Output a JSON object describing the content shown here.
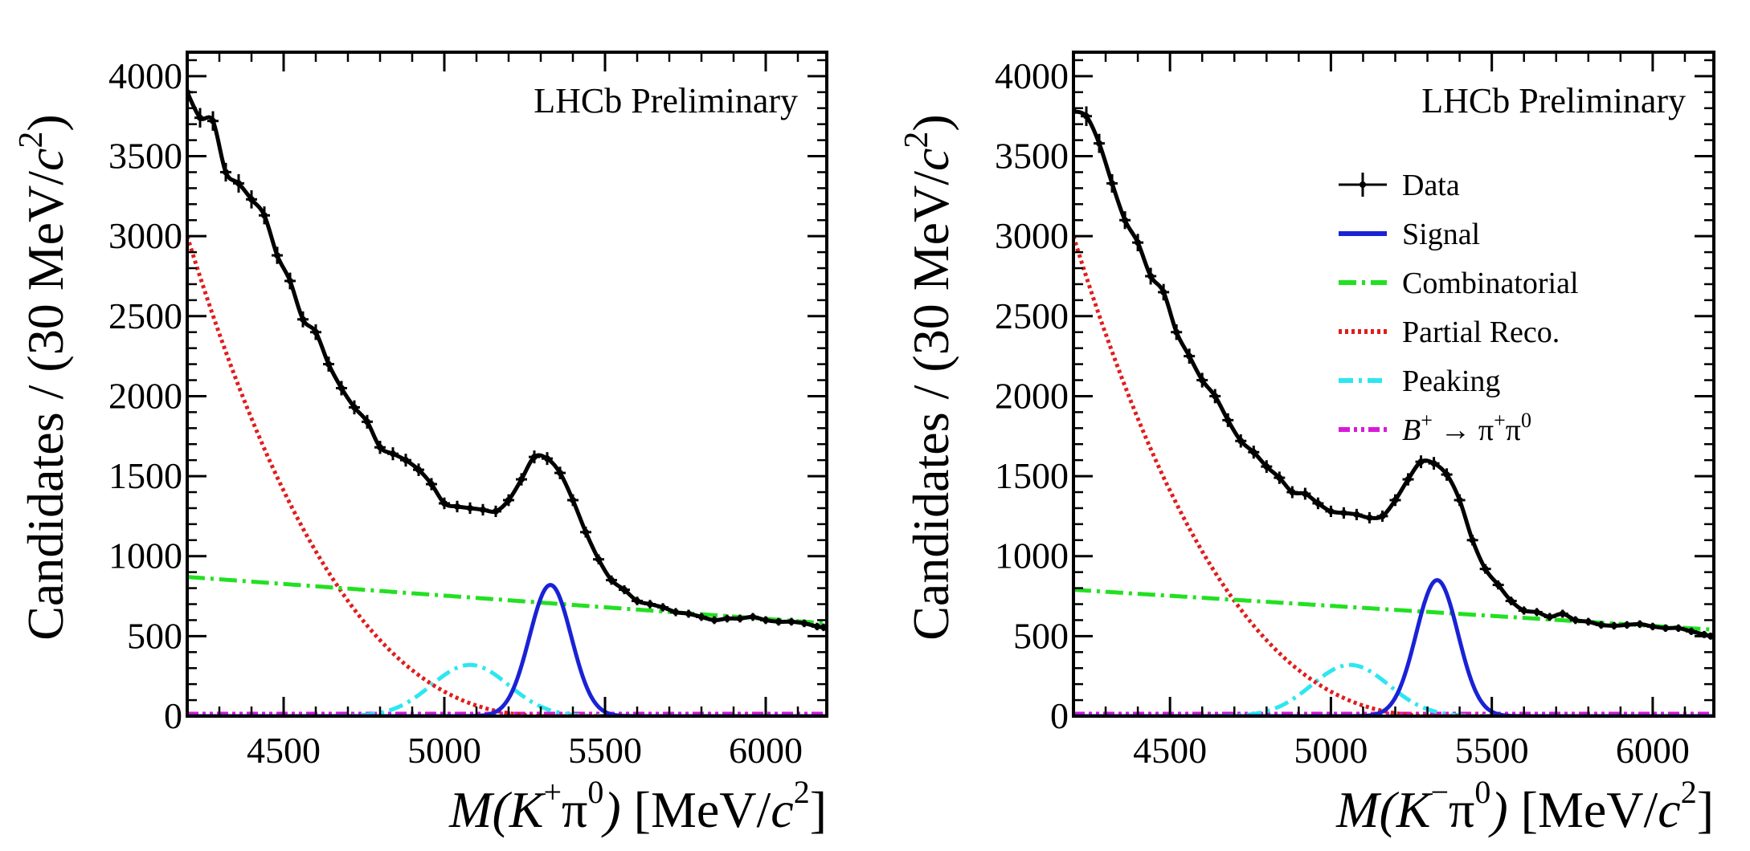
{
  "chart_data": [
    {
      "type": "line",
      "annotation": "LHCb Preliminary",
      "xlabel_parts": {
        "var": "M",
        "open": "(K",
        "charge": "+",
        "pi": "π",
        "zero": "0",
        "close": ")",
        "unit": " [MeV/",
        "c": "c",
        "sq": "2",
        "end": "]"
      },
      "ylabel_parts": {
        "main": "Candidates / (30 MeV/",
        "c": "c",
        "sq": "2",
        "end": ")"
      },
      "xlim": [
        4200,
        6190
      ],
      "ylim": [
        0,
        4150
      ],
      "x_ticks": [
        4500,
        5000,
        5500,
        6000
      ],
      "y_ticks": [
        0,
        500,
        1000,
        1500,
        2000,
        2500,
        3000,
        3500,
        4000
      ],
      "data_points": [
        [
          4200,
          3900
        ],
        [
          4240,
          3740
        ],
        [
          4280,
          3720
        ],
        [
          4320,
          3400
        ],
        [
          4360,
          3330
        ],
        [
          4400,
          3230
        ],
        [
          4440,
          3130
        ],
        [
          4480,
          2880
        ],
        [
          4520,
          2720
        ],
        [
          4560,
          2480
        ],
        [
          4600,
          2400
        ],
        [
          4640,
          2200
        ],
        [
          4680,
          2050
        ],
        [
          4720,
          1930
        ],
        [
          4760,
          1840
        ],
        [
          4800,
          1680
        ],
        [
          4840,
          1640
        ],
        [
          4880,
          1600
        ],
        [
          4920,
          1540
        ],
        [
          4960,
          1450
        ],
        [
          5000,
          1330
        ],
        [
          5040,
          1310
        ],
        [
          5080,
          1300
        ],
        [
          5120,
          1290
        ],
        [
          5160,
          1280
        ],
        [
          5200,
          1350
        ],
        [
          5240,
          1480
        ],
        [
          5280,
          1620
        ],
        [
          5320,
          1610
        ],
        [
          5360,
          1520
        ],
        [
          5400,
          1350
        ],
        [
          5440,
          1150
        ],
        [
          5480,
          980
        ],
        [
          5520,
          850
        ],
        [
          5560,
          790
        ],
        [
          5600,
          720
        ],
        [
          5640,
          700
        ],
        [
          5680,
          680
        ],
        [
          5720,
          650
        ],
        [
          5760,
          640
        ],
        [
          5800,
          620
        ],
        [
          5840,
          600
        ],
        [
          5880,
          610
        ],
        [
          5920,
          610
        ],
        [
          5960,
          620
        ],
        [
          6000,
          600
        ],
        [
          6040,
          590
        ],
        [
          6080,
          590
        ],
        [
          6120,
          580
        ],
        [
          6160,
          560
        ],
        [
          6180,
          555
        ]
      ],
      "components": {
        "signal": {
          "amplitude": 820,
          "mean": 5330,
          "sigma": 65
        },
        "combinatorial": {
          "start": [
            4200,
            870
          ],
          "end": [
            6190,
            580
          ]
        },
        "partial_reco": {
          "y_at_4200": 3000,
          "endpoint": 5350,
          "power": 2.5
        },
        "peaking": {
          "amplitude": 320,
          "mean": 5080,
          "sigma": 120
        },
        "b_to_pipi": {
          "level": 15
        }
      },
      "total_line_color": "#000000",
      "colors": {
        "signal": "#1a22d6",
        "combinatorial": "#22e022",
        "partial_reco": "#e11d1d",
        "peaking": "#2ee6f0",
        "b_to_pipi": "#d81ad8",
        "data": "#000000"
      }
    },
    {
      "type": "line",
      "annotation": "LHCb Preliminary",
      "xlabel_parts": {
        "var": "M",
        "open": "(K",
        "charge": "−",
        "pi": "π",
        "zero": "0",
        "close": ")",
        "unit": " [MeV/",
        "c": "c",
        "sq": "2",
        "end": "]"
      },
      "ylabel_parts": {
        "main": "Candidates / (30 MeV/",
        "c": "c",
        "sq": "2",
        "end": ")"
      },
      "xlim": [
        4200,
        6190
      ],
      "ylim": [
        0,
        4150
      ],
      "x_ticks": [
        4500,
        5000,
        5500,
        6000
      ],
      "y_ticks": [
        0,
        500,
        1000,
        1500,
        2000,
        2500,
        3000,
        3500,
        4000
      ],
      "data_points": [
        [
          4200,
          3780
        ],
        [
          4240,
          3750
        ],
        [
          4280,
          3580
        ],
        [
          4320,
          3330
        ],
        [
          4360,
          3100
        ],
        [
          4400,
          2960
        ],
        [
          4440,
          2750
        ],
        [
          4480,
          2650
        ],
        [
          4520,
          2400
        ],
        [
          4560,
          2250
        ],
        [
          4600,
          2100
        ],
        [
          4640,
          2000
        ],
        [
          4680,
          1850
        ],
        [
          4720,
          1720
        ],
        [
          4760,
          1650
        ],
        [
          4800,
          1560
        ],
        [
          4840,
          1490
        ],
        [
          4880,
          1400
        ],
        [
          4920,
          1390
        ],
        [
          4960,
          1330
        ],
        [
          5000,
          1280
        ],
        [
          5040,
          1270
        ],
        [
          5080,
          1260
        ],
        [
          5120,
          1240
        ],
        [
          5160,
          1250
        ],
        [
          5200,
          1350
        ],
        [
          5240,
          1480
        ],
        [
          5280,
          1590
        ],
        [
          5320,
          1580
        ],
        [
          5360,
          1510
        ],
        [
          5400,
          1350
        ],
        [
          5440,
          1100
        ],
        [
          5480,
          920
        ],
        [
          5520,
          820
        ],
        [
          5560,
          720
        ],
        [
          5600,
          660
        ],
        [
          5640,
          650
        ],
        [
          5680,
          620
        ],
        [
          5720,
          640
        ],
        [
          5760,
          600
        ],
        [
          5800,
          590
        ],
        [
          5840,
          570
        ],
        [
          5880,
          565
        ],
        [
          5920,
          570
        ],
        [
          5960,
          575
        ],
        [
          6000,
          560
        ],
        [
          6040,
          550
        ],
        [
          6080,
          550
        ],
        [
          6120,
          530
        ],
        [
          6160,
          510
        ],
        [
          6180,
          500
        ]
      ],
      "components": {
        "signal": {
          "amplitude": 850,
          "mean": 5330,
          "sigma": 65
        },
        "combinatorial": {
          "start": [
            4200,
            790
          ],
          "end": [
            6190,
            540
          ]
        },
        "partial_reco": {
          "y_at_4200": 3000,
          "endpoint": 5350,
          "power": 2.5
        },
        "peaking": {
          "amplitude": 320,
          "mean": 5060,
          "sigma": 120
        },
        "b_to_pipi": {
          "level": 15
        }
      },
      "total_line_color": "#000000",
      "colors": {
        "signal": "#1a22d6",
        "combinatorial": "#22e022",
        "partial_reco": "#e11d1d",
        "peaking": "#2ee6f0",
        "b_to_pipi": "#d81ad8",
        "data": "#000000"
      },
      "legend": [
        {
          "key": "data",
          "label": "Data"
        },
        {
          "key": "signal",
          "label": "Signal"
        },
        {
          "key": "combinatorial",
          "label": "Combinatorial"
        },
        {
          "key": "partial_reco",
          "label": "Partial Reco."
        },
        {
          "key": "peaking",
          "label": "Peaking"
        },
        {
          "key": "b_to_pipi",
          "label_parts": {
            "b": "B",
            "plus": "+",
            "arrow": " → π",
            "pplus": "+",
            "pi": "π",
            "zero": "0"
          }
        }
      ]
    }
  ]
}
